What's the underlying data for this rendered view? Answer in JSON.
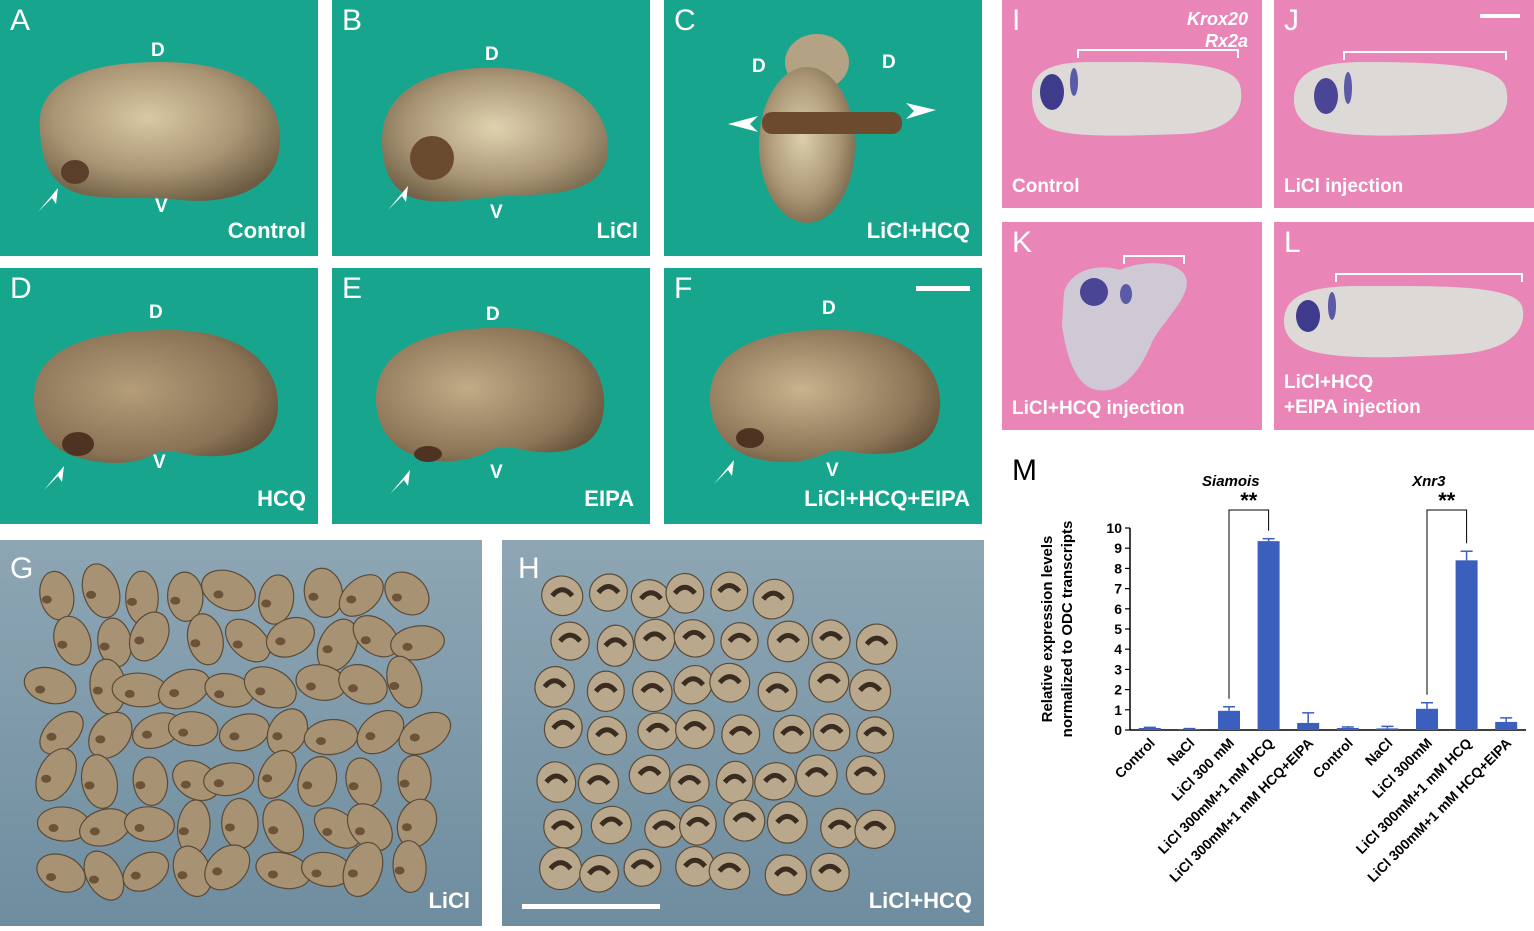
{
  "panels": {
    "A": {
      "letter": "A",
      "dorsal": "D",
      "ventral": "V",
      "label": "Control"
    },
    "B": {
      "letter": "B",
      "dorsal": "D",
      "ventral": "V",
      "label": "LiCl"
    },
    "C": {
      "letter": "C",
      "dorsal_left": "D",
      "dorsal_right": "D",
      "label": "LiCl+HCQ"
    },
    "D": {
      "letter": "D",
      "dorsal": "D",
      "ventral": "V",
      "label": "HCQ"
    },
    "E": {
      "letter": "E",
      "dorsal": "D",
      "ventral": "V",
      "label": "EIPA"
    },
    "F": {
      "letter": "F",
      "dorsal": "D",
      "ventral": "V",
      "label": "LiCl+HCQ+EIPA"
    },
    "G": {
      "letter": "G",
      "label": "LiCl"
    },
    "H": {
      "letter": "H",
      "label": "LiCl+HCQ"
    },
    "I": {
      "letter": "I",
      "gene1": "Krox20",
      "gene2": "Rx2a",
      "label": "Control"
    },
    "J": {
      "letter": "J",
      "label": "LiCl injection"
    },
    "K": {
      "letter": "K",
      "label": "LiCl+HCQ injection"
    },
    "L": {
      "letter": "L",
      "label1": "LiCl+HCQ",
      "label2": "+EIPA injection"
    },
    "M": {
      "letter": "M"
    }
  },
  "chart_data": {
    "type": "bar",
    "ylabel_line1": "Relative expression levels",
    "ylabel_line2": "normalized to ODC  transcripts",
    "ylim": [
      0,
      10
    ],
    "yticks": [
      0,
      1,
      2,
      3,
      4,
      5,
      6,
      7,
      8,
      9,
      10
    ],
    "groups": [
      {
        "name": "Siamois",
        "significance": "**",
        "categories": [
          "Control",
          "NaCl",
          "LiCl 300 mM",
          "LiCl 300mM+1 mM HCQ",
          "LiCl 300mM+1 mM HCQ+EIPA"
        ],
        "values": [
          0.1,
          0.05,
          0.95,
          9.35,
          0.35
        ],
        "errors": [
          0.03,
          0.02,
          0.2,
          0.12,
          0.5
        ]
      },
      {
        "name": "Xnr3",
        "significance": "**",
        "categories": [
          "Control",
          "NaCl",
          "LiCl 300mM",
          "LiCl 300mM+1 mM HCQ",
          "LiCl 300mM+1 mM HCQ+EIPA"
        ],
        "values": [
          0.1,
          0.08,
          1.05,
          8.4,
          0.4
        ],
        "errors": [
          0.05,
          0.1,
          0.3,
          0.45,
          0.2
        ]
      }
    ],
    "bar_color": "#3a5fbd"
  }
}
